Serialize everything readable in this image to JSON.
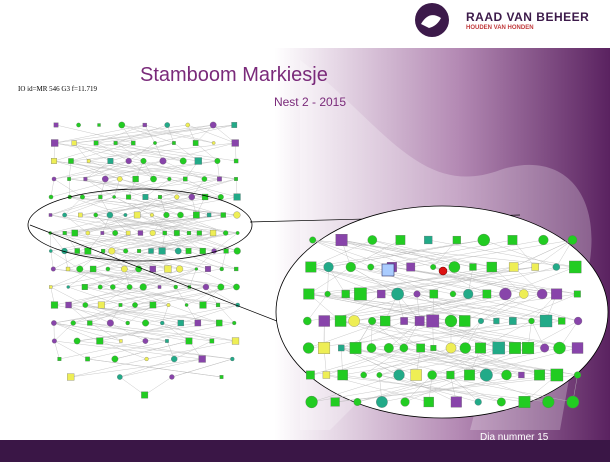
{
  "header": {
    "logo_title": "RAAD VAN BEHEER",
    "logo_subtitle": "HOUDEN VAN HONDEN"
  },
  "slide": {
    "title": "Stamboom Markiesje",
    "subtitle": "Nest 2 - 2015",
    "graph_label": "IO id=MR 546 G3 f=11.719"
  },
  "footer": {
    "page": "Dia nummer 15"
  }
}
